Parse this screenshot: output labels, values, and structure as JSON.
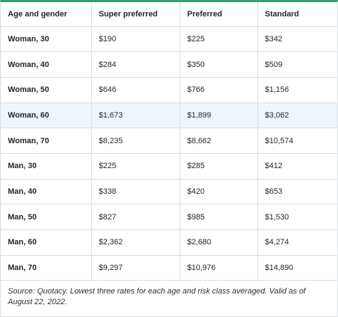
{
  "table": {
    "headers": [
      "Age and gender",
      "Super preferred",
      "Preferred",
      "Standard"
    ],
    "rows": [
      {
        "label": "Woman, 30",
        "values": [
          "$190",
          "$225",
          "$342"
        ]
      },
      {
        "label": "Woman, 40",
        "values": [
          "$284",
          "$350",
          "$509"
        ]
      },
      {
        "label": "Woman, 50",
        "values": [
          "$646",
          "$766",
          "$1,156"
        ]
      },
      {
        "label": "Woman, 60",
        "values": [
          "$1,673",
          "$1,899",
          "$3,062"
        ]
      },
      {
        "label": "Woman, 70",
        "values": [
          "$8,235",
          "$8,662",
          "$10,574"
        ]
      },
      {
        "label": "Man, 30",
        "values": [
          "$225",
          "$285",
          "$412"
        ]
      },
      {
        "label": "Man, 40",
        "values": [
          "$338",
          "$420",
          "$653"
        ]
      },
      {
        "label": "Man, 50",
        "values": [
          "$827",
          "$985",
          "$1,530"
        ]
      },
      {
        "label": "Man, 60",
        "values": [
          "$2,362",
          "$2,680",
          "$4,274"
        ]
      },
      {
        "label": "Man, 70",
        "values": [
          "$9,297",
          "$10,976",
          "$14,890"
        ]
      }
    ],
    "highlighted_row": "Woman, 60"
  },
  "source_note": "Source: Quotacy. Lowest three rates for each age and risk class averaged. Valid as of August 22, 2022.",
  "colors": {
    "accent_top_border": "#2aa36b",
    "highlight_row_bg": "#eef5fc",
    "grid_line": "#d9dde1"
  }
}
